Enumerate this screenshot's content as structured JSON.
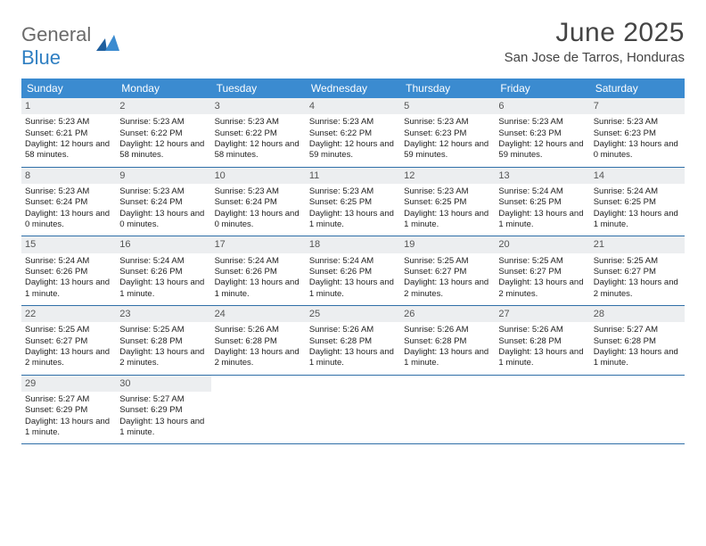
{
  "logo": {
    "part1": "General",
    "part2": "Blue"
  },
  "title": "June 2025",
  "location": "San Jose de Tarros, Honduras",
  "weekdays": [
    "Sunday",
    "Monday",
    "Tuesday",
    "Wednesday",
    "Thursday",
    "Friday",
    "Saturday"
  ],
  "colors": {
    "header_bg": "#3b8bd0",
    "week_border": "#2f6fa8",
    "daynum_bg": "#eceef0",
    "logo_blue": "#2f7fc2"
  },
  "weeks": [
    [
      {
        "n": "1",
        "sr": "5:23 AM",
        "ss": "6:21 PM",
        "dl": "12 hours and 58 minutes."
      },
      {
        "n": "2",
        "sr": "5:23 AM",
        "ss": "6:22 PM",
        "dl": "12 hours and 58 minutes."
      },
      {
        "n": "3",
        "sr": "5:23 AM",
        "ss": "6:22 PM",
        "dl": "12 hours and 58 minutes."
      },
      {
        "n": "4",
        "sr": "5:23 AM",
        "ss": "6:22 PM",
        "dl": "12 hours and 59 minutes."
      },
      {
        "n": "5",
        "sr": "5:23 AM",
        "ss": "6:23 PM",
        "dl": "12 hours and 59 minutes."
      },
      {
        "n": "6",
        "sr": "5:23 AM",
        "ss": "6:23 PM",
        "dl": "12 hours and 59 minutes."
      },
      {
        "n": "7",
        "sr": "5:23 AM",
        "ss": "6:23 PM",
        "dl": "13 hours and 0 minutes."
      }
    ],
    [
      {
        "n": "8",
        "sr": "5:23 AM",
        "ss": "6:24 PM",
        "dl": "13 hours and 0 minutes."
      },
      {
        "n": "9",
        "sr": "5:23 AM",
        "ss": "6:24 PM",
        "dl": "13 hours and 0 minutes."
      },
      {
        "n": "10",
        "sr": "5:23 AM",
        "ss": "6:24 PM",
        "dl": "13 hours and 0 minutes."
      },
      {
        "n": "11",
        "sr": "5:23 AM",
        "ss": "6:25 PM",
        "dl": "13 hours and 1 minute."
      },
      {
        "n": "12",
        "sr": "5:23 AM",
        "ss": "6:25 PM",
        "dl": "13 hours and 1 minute."
      },
      {
        "n": "13",
        "sr": "5:24 AM",
        "ss": "6:25 PM",
        "dl": "13 hours and 1 minute."
      },
      {
        "n": "14",
        "sr": "5:24 AM",
        "ss": "6:25 PM",
        "dl": "13 hours and 1 minute."
      }
    ],
    [
      {
        "n": "15",
        "sr": "5:24 AM",
        "ss": "6:26 PM",
        "dl": "13 hours and 1 minute."
      },
      {
        "n": "16",
        "sr": "5:24 AM",
        "ss": "6:26 PM",
        "dl": "13 hours and 1 minute."
      },
      {
        "n": "17",
        "sr": "5:24 AM",
        "ss": "6:26 PM",
        "dl": "13 hours and 1 minute."
      },
      {
        "n": "18",
        "sr": "5:24 AM",
        "ss": "6:26 PM",
        "dl": "13 hours and 1 minute."
      },
      {
        "n": "19",
        "sr": "5:25 AM",
        "ss": "6:27 PM",
        "dl": "13 hours and 2 minutes."
      },
      {
        "n": "20",
        "sr": "5:25 AM",
        "ss": "6:27 PM",
        "dl": "13 hours and 2 minutes."
      },
      {
        "n": "21",
        "sr": "5:25 AM",
        "ss": "6:27 PM",
        "dl": "13 hours and 2 minutes."
      }
    ],
    [
      {
        "n": "22",
        "sr": "5:25 AM",
        "ss": "6:27 PM",
        "dl": "13 hours and 2 minutes."
      },
      {
        "n": "23",
        "sr": "5:25 AM",
        "ss": "6:28 PM",
        "dl": "13 hours and 2 minutes."
      },
      {
        "n": "24",
        "sr": "5:26 AM",
        "ss": "6:28 PM",
        "dl": "13 hours and 2 minutes."
      },
      {
        "n": "25",
        "sr": "5:26 AM",
        "ss": "6:28 PM",
        "dl": "13 hours and 1 minute."
      },
      {
        "n": "26",
        "sr": "5:26 AM",
        "ss": "6:28 PM",
        "dl": "13 hours and 1 minute."
      },
      {
        "n": "27",
        "sr": "5:26 AM",
        "ss": "6:28 PM",
        "dl": "13 hours and 1 minute."
      },
      {
        "n": "28",
        "sr": "5:27 AM",
        "ss": "6:28 PM",
        "dl": "13 hours and 1 minute."
      }
    ],
    [
      {
        "n": "29",
        "sr": "5:27 AM",
        "ss": "6:29 PM",
        "dl": "13 hours and 1 minute."
      },
      {
        "n": "30",
        "sr": "5:27 AM",
        "ss": "6:29 PM",
        "dl": "13 hours and 1 minute."
      },
      null,
      null,
      null,
      null,
      null
    ]
  ],
  "labels": {
    "sunrise": "Sunrise:",
    "sunset": "Sunset:",
    "daylight": "Daylight:"
  }
}
